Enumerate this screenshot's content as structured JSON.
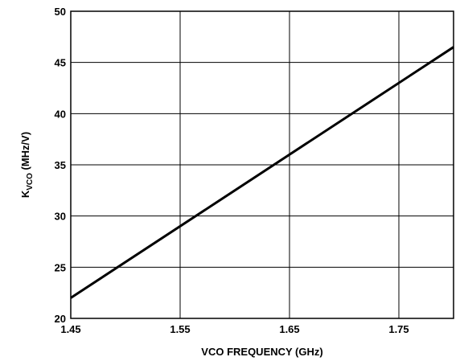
{
  "chart_data": {
    "type": "line",
    "xlabel": "VCO FREQUENCY (GHz)",
    "ylabel_main": "K",
    "ylabel_sub": "VCO",
    "ylabel_suffix": " (MHz/V)",
    "xlim": [
      1.45,
      1.8
    ],
    "ylim": [
      20,
      50
    ],
    "x_ticks": [
      1.45,
      1.55,
      1.65,
      1.75
    ],
    "x_tick_labels": [
      "1.45",
      "1.55",
      "1.65",
      "1.75"
    ],
    "y_ticks": [
      20,
      25,
      30,
      35,
      40,
      45,
      50
    ],
    "y_tick_labels": [
      "20",
      "25",
      "30",
      "35",
      "40",
      "45",
      "50"
    ],
    "x_grid": [
      1.45,
      1.55,
      1.65,
      1.75,
      1.8
    ],
    "y_grid": [
      20,
      25,
      30,
      35,
      40,
      45,
      50
    ],
    "grid": true,
    "series": [
      {
        "x": [
          1.45,
          1.8
        ],
        "y": [
          22,
          46.5
        ]
      }
    ]
  }
}
